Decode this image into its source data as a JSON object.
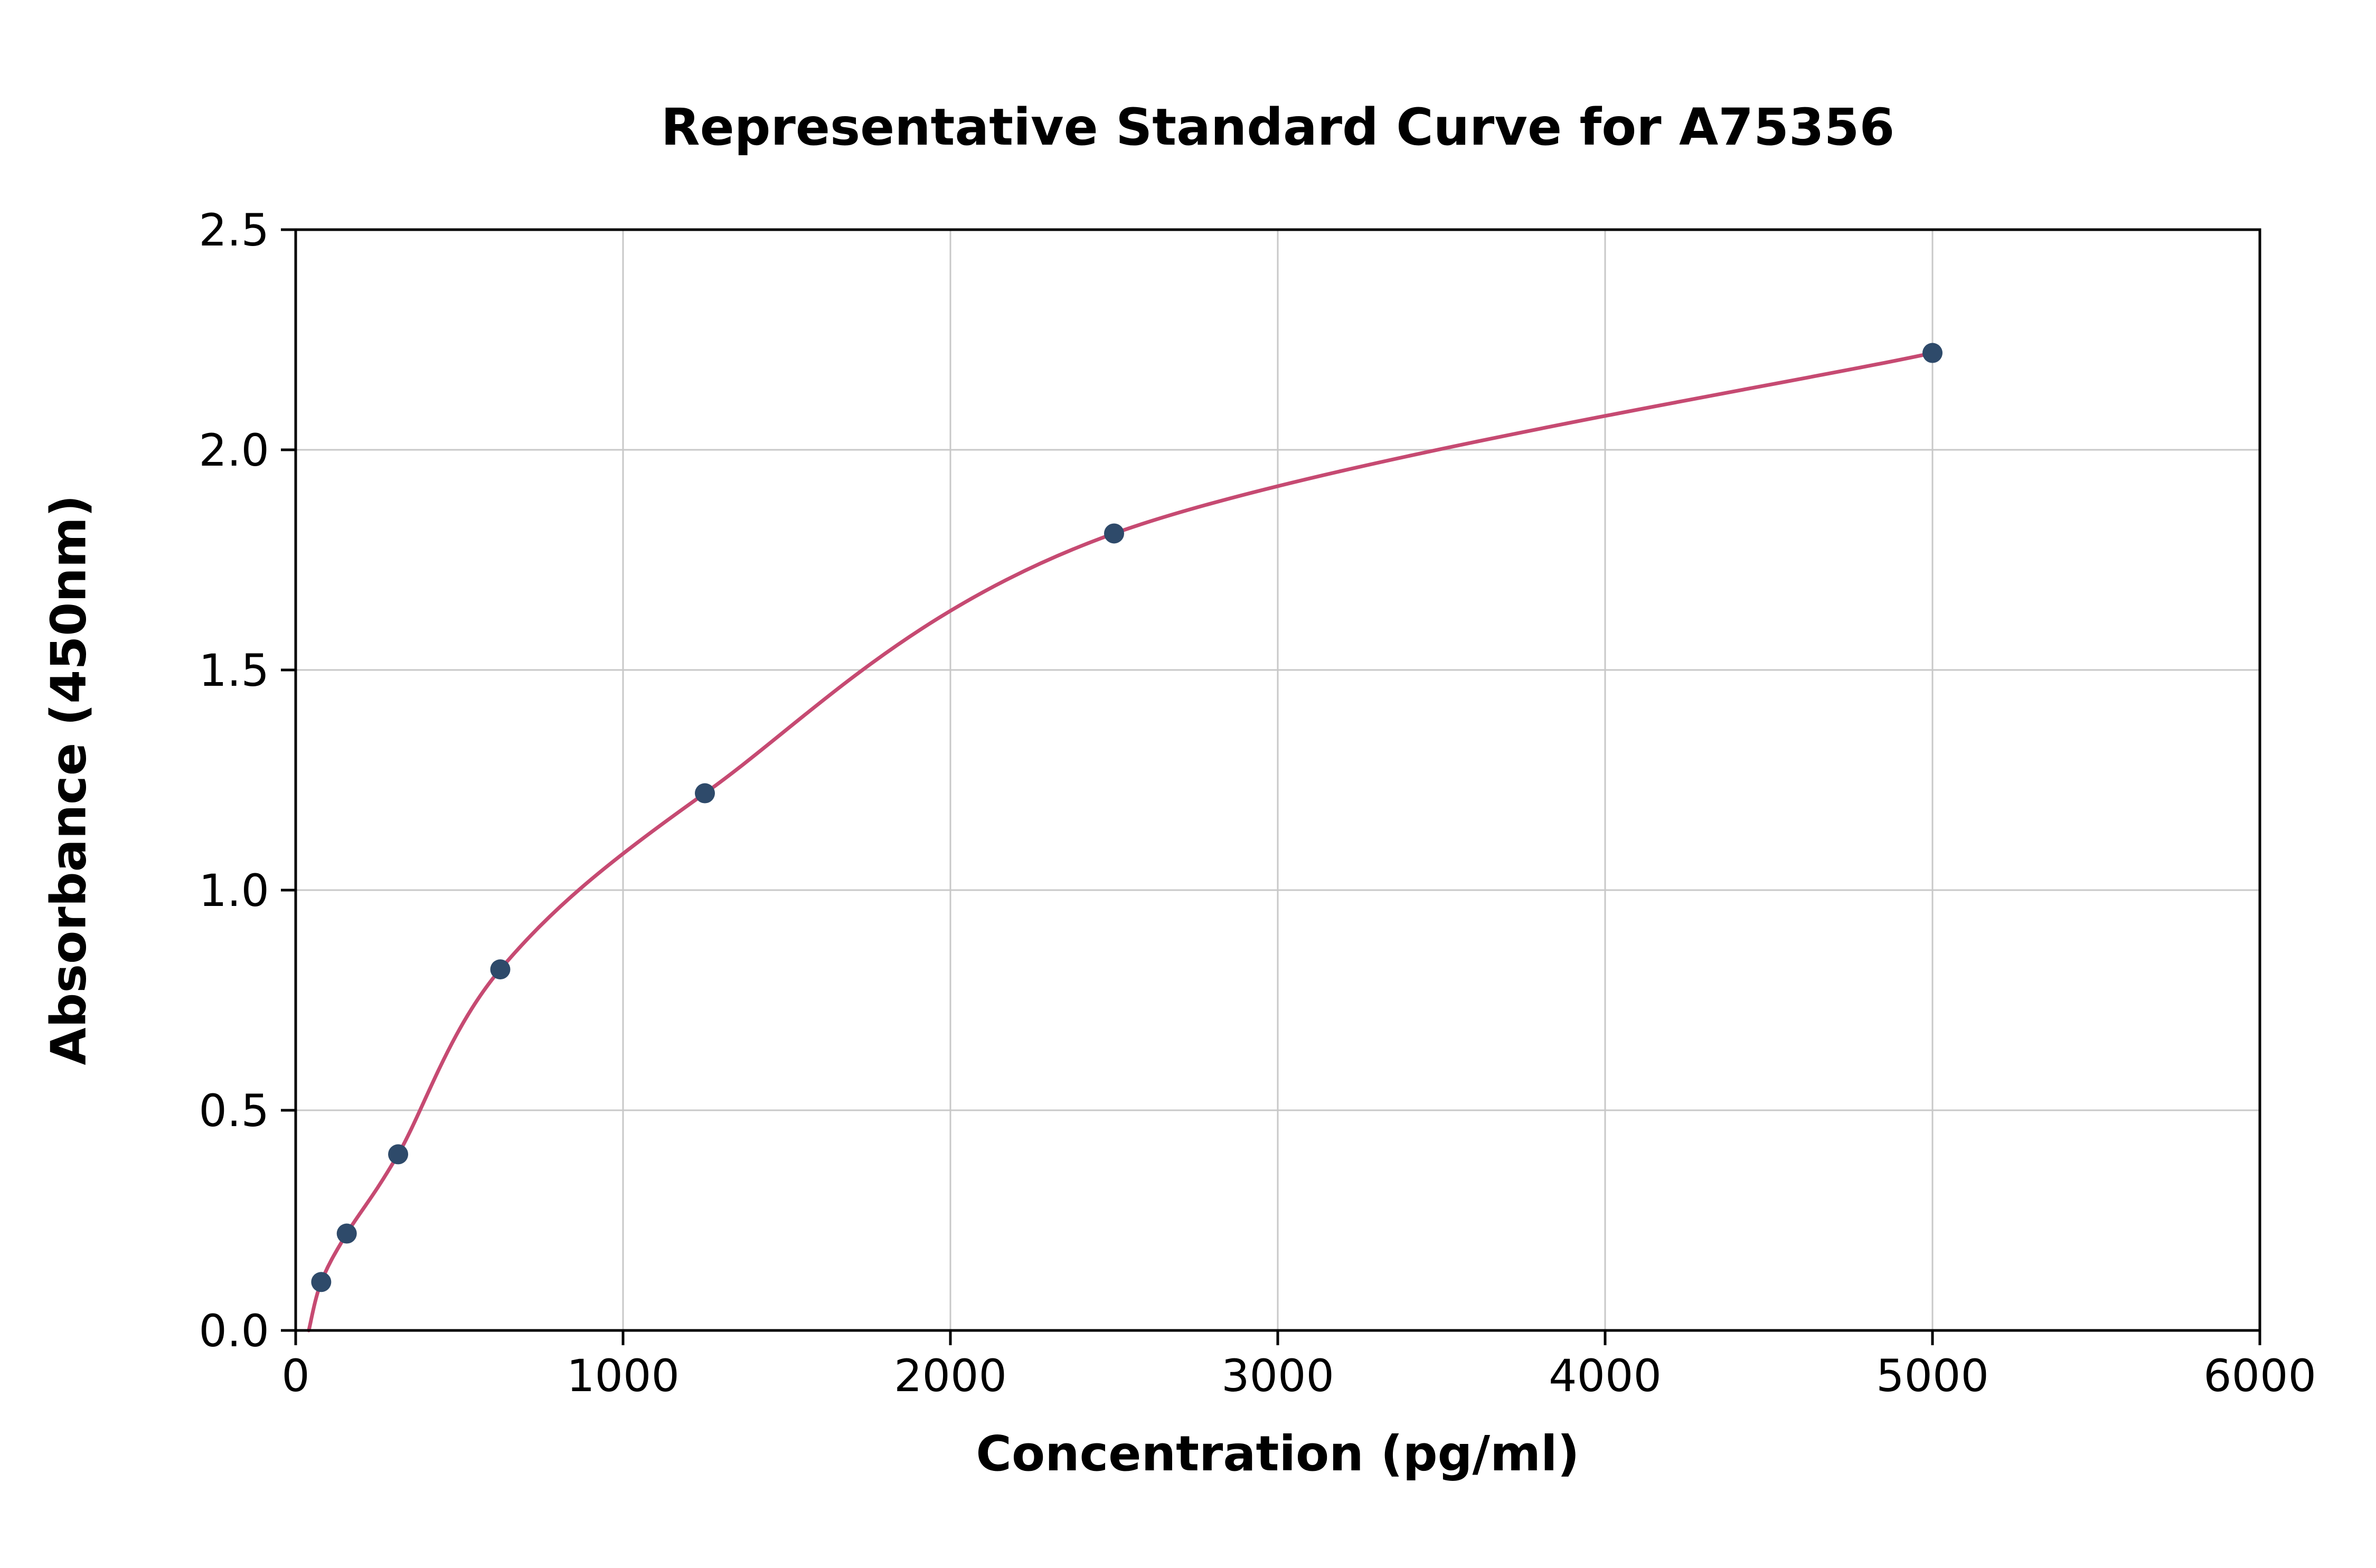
{
  "chart_data": {
    "type": "scatter",
    "title": "Representative Standard Curve for A75356",
    "xlabel": "Concentration (pg/ml)",
    "ylabel": "Absorbance (450nm)",
    "xlim": [
      0,
      6000
    ],
    "ylim": [
      0,
      2.5
    ],
    "x_ticks": [
      0,
      1000,
      2000,
      3000,
      4000,
      5000,
      6000
    ],
    "x_tick_labels": [
      "0",
      "1000",
      "2000",
      "3000",
      "4000",
      "5000",
      "6000"
    ],
    "y_ticks": [
      0.0,
      0.5,
      1.0,
      1.5,
      2.0,
      2.5
    ],
    "y_tick_labels": [
      "0.0",
      "0.5",
      "1.0",
      "1.5",
      "2.0",
      "2.5"
    ],
    "grid": true,
    "legend": "none",
    "points": {
      "x": [
        78,
        156,
        313,
        625,
        1250,
        2500,
        5000
      ],
      "y": [
        0.11,
        0.22,
        0.4,
        0.82,
        1.22,
        1.81,
        2.22
      ]
    },
    "curve_start": {
      "x": 40,
      "y": 0.0
    },
    "colors": {
      "curve": "#c64a72",
      "marker": "#2e4a6a",
      "grid": "#c8c8c8",
      "axis": "#000000",
      "background": "#ffffff"
    }
  }
}
